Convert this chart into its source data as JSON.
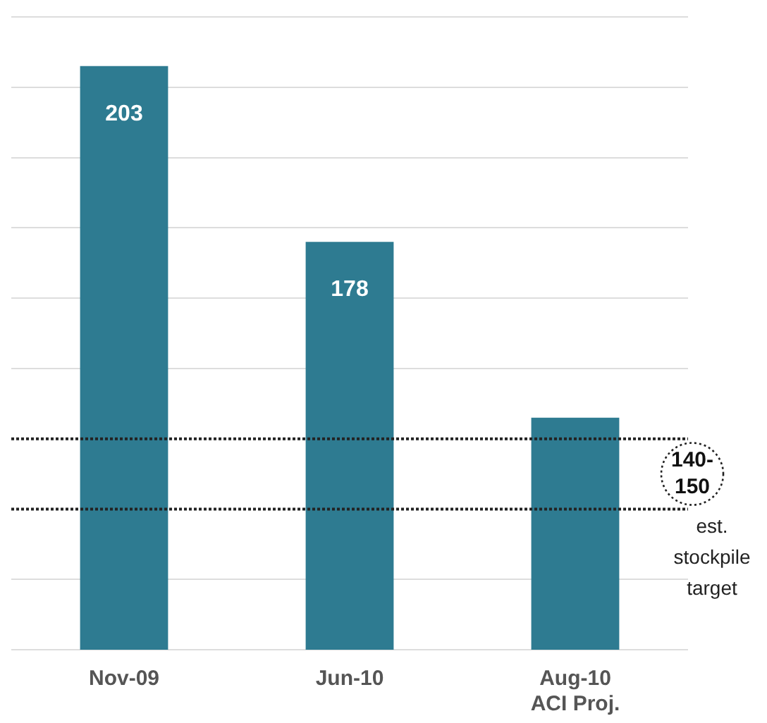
{
  "chart_data": {
    "type": "bar",
    "categories": [
      "Nov-09",
      "Jun-10",
      "Aug-10\nACI Proj."
    ],
    "values": [
      203,
      178,
      153
    ],
    "value_labels": [
      "203",
      "178",
      null
    ],
    "color": "#2e7b91",
    "ylim": [
      120,
      210
    ],
    "yticks": [
      {
        "value": 120,
        "label": null
      },
      {
        "value": 130,
        "label": null
      },
      {
        "value": 160,
        "label": null
      },
      {
        "value": 170,
        "label": null
      },
      {
        "value": 180,
        "label": null
      },
      {
        "value": 190,
        "label": null
      },
      {
        "value": 200,
        "label": null
      },
      {
        "value": 210,
        "label": null
      }
    ],
    "grid": "y",
    "tick_labels": "x",
    "legend": false,
    "ref_lines": [
      {
        "axis": "y",
        "value": 150,
        "line_style": "dotted",
        "color": "#222222"
      },
      {
        "axis": "y",
        "value": 140,
        "line_style": "dotted",
        "color": "#222222"
      }
    ],
    "annotations": [
      "140-150",
      "est. stockpile target"
    ]
  }
}
